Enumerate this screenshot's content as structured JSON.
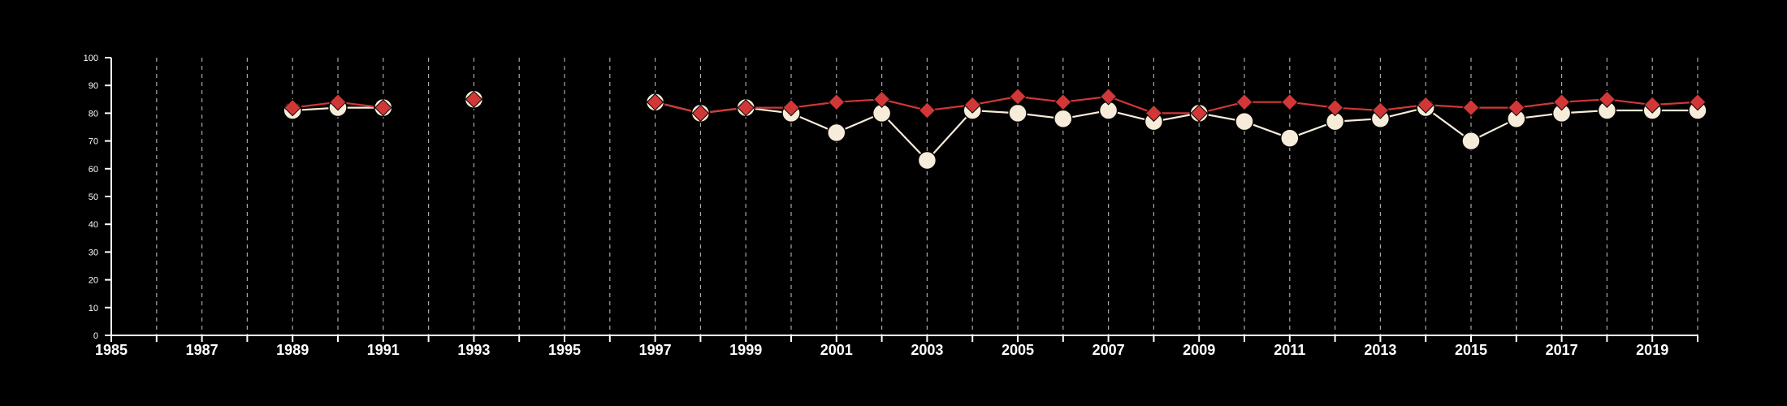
{
  "chart_data": {
    "type": "line",
    "title": "",
    "xlabel": "",
    "ylabel": "",
    "x_range": [
      1985,
      2020
    ],
    "ylim": [
      0,
      100
    ],
    "x_tick_labels": [
      "1985",
      "1987",
      "1989",
      "1991",
      "1993",
      "1995",
      "1997",
      "1999",
      "2001",
      "2003",
      "2005",
      "2007",
      "2009",
      "2011",
      "2013",
      "2015",
      "2017",
      "2019"
    ],
    "y_tick_labels": [
      "0",
      "10",
      "20",
      "30",
      "40",
      "50",
      "60",
      "70",
      "80",
      "90",
      "100"
    ],
    "grid": "vertical dashed at every year",
    "legend": "none",
    "x": [
      1989,
      1990,
      1991,
      1992,
      1993,
      1994,
      1995,
      1996,
      1997,
      1998,
      1999,
      2000,
      2001,
      2002,
      2003,
      2004,
      2005,
      2006,
      2007,
      2008,
      2009,
      2010,
      2011,
      2012,
      2013,
      2014,
      2015,
      2016,
      2017,
      2018,
      2019,
      2020
    ],
    "series": [
      {
        "marker": "circle",
        "color": "#f7ecd9",
        "values": [
          81,
          82,
          82,
          null,
          85,
          null,
          null,
          null,
          84,
          80,
          82,
          80,
          73,
          80,
          63,
          81,
          80,
          78,
          81,
          77,
          80,
          77,
          71,
          77,
          78,
          82,
          70,
          78,
          80,
          81,
          81,
          81
        ]
      },
      {
        "marker": "diamond",
        "color": "#d13737",
        "values": [
          82,
          84,
          82,
          null,
          85,
          null,
          null,
          null,
          84,
          80,
          82,
          82,
          84,
          85,
          81,
          83,
          86,
          84,
          86,
          80,
          80,
          84,
          84,
          82,
          81,
          83,
          82,
          82,
          84,
          85,
          83,
          84
        ]
      }
    ]
  }
}
